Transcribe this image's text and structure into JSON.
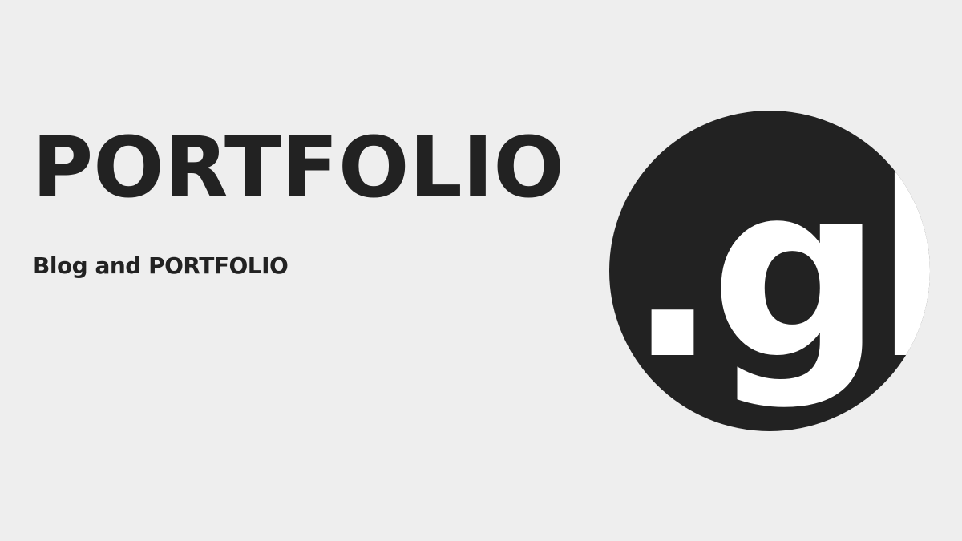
{
  "page": {
    "background": "#eeeeee",
    "text_color": "#222222"
  },
  "hero": {
    "title": "PORTFOLIO",
    "subtitle": "Blog and PORTFOLIO"
  },
  "logo": {
    "text": ".gh",
    "circle_color": "#222222",
    "letter_color": "#ffffff"
  }
}
